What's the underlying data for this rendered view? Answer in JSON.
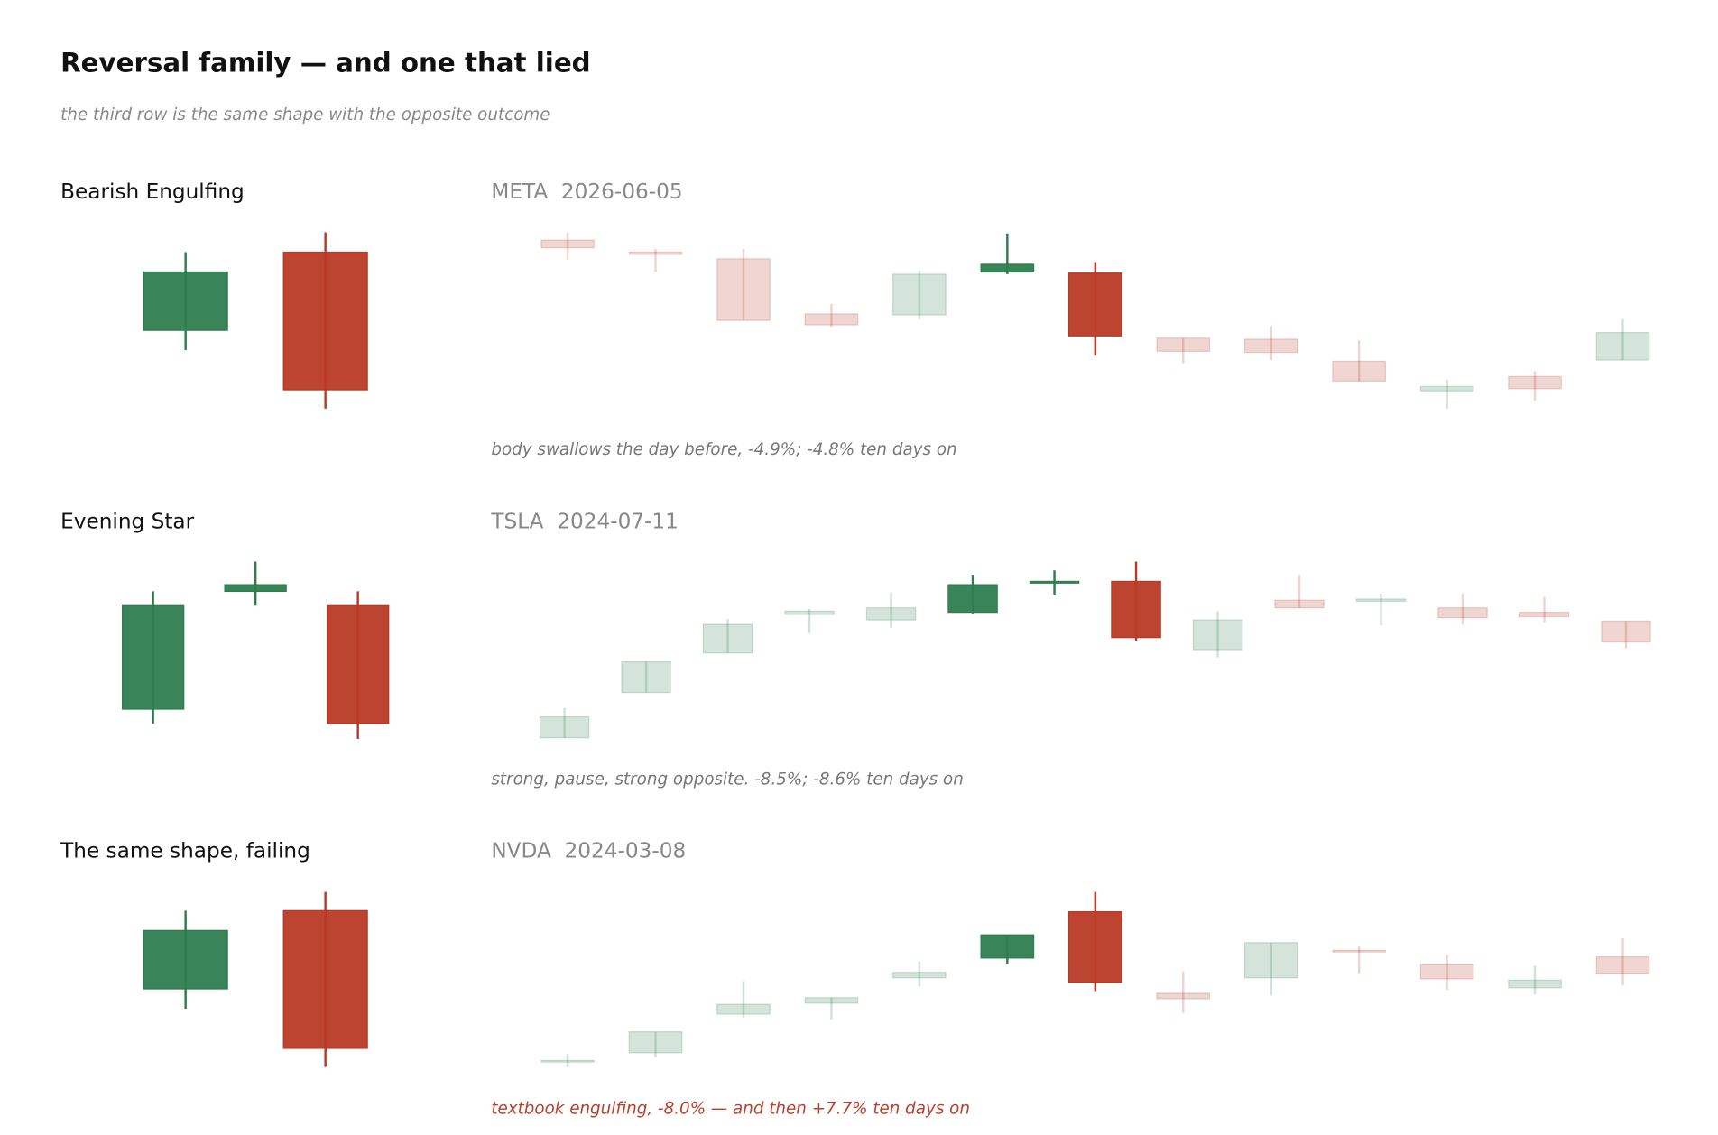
{
  "title": "Reversal family — and one that lied",
  "subtitle": "the third row is the same shape with the opposite outcome",
  "chart_data": [
    {
      "type": "candlestick",
      "title": "Bearish Engulfing",
      "title_color": "#111111",
      "open": [
        80,
        151
      ],
      "high": [
        151,
        169
      ],
      "low": [
        62,
        9
      ],
      "close": [
        133,
        26
      ],
      "ylim": [
        0,
        180
      ],
      "up_color": "#2e7d4f",
      "down_color": "#b83a25"
    },
    {
      "type": "candlestick",
      "title": "META  2026-06-05",
      "title_color": "#888888",
      "caption": "body swallows the day before, -4.9%; -4.8% ten days on",
      "caption_color": "#777777",
      "open": [
        162,
        151,
        145,
        95,
        94,
        133,
        132,
        73,
        72,
        52,
        25,
        38,
        53
      ],
      "high": [
        169,
        154,
        154,
        104,
        134,
        168,
        142,
        73,
        84,
        71,
        35,
        43,
        90
      ],
      "low": [
        144,
        133,
        89,
        83,
        90,
        131,
        57,
        50,
        53,
        34,
        9,
        16,
        53
      ],
      "close": [
        155,
        149,
        89,
        85,
        131,
        140,
        75,
        61,
        60,
        34,
        29,
        27,
        78
      ],
      "highlight": [
        5,
        6
      ],
      "ylim": [
        0,
        180
      ],
      "up_color": "#2e7d4f",
      "down_color": "#b83a25"
    },
    {
      "type": "candlestick",
      "title": "Evening Star",
      "title_color": "#111111",
      "open": [
        36,
        143,
        130
      ],
      "high": [
        143,
        170,
        143
      ],
      "low": [
        23,
        130,
        9
      ],
      "close": [
        130,
        149,
        23
      ],
      "ylim": [
        0,
        180
      ],
      "up_color": "#2e7d4f",
      "down_color": "#b83a25"
    },
    {
      "type": "candlestick",
      "title": "TSLA  2024-07-11",
      "title_color": "#888888",
      "caption": "strong, pause, strong opposite. -8.5%; -8.6% ten days on",
      "caption_color": "#777777",
      "open": [
        10,
        51,
        87,
        122,
        117,
        124,
        151,
        152,
        90,
        135,
        134,
        128,
        124,
        116
      ],
      "high": [
        37,
        79,
        118,
        127,
        142,
        158,
        162,
        170,
        125,
        158,
        141,
        141,
        138,
        116
      ],
      "low": [
        10,
        51,
        87,
        105,
        110,
        123,
        140,
        98,
        83,
        128,
        112,
        113,
        115,
        91
      ],
      "close": [
        29,
        79,
        113,
        125,
        128,
        149,
        152,
        101,
        117,
        128,
        136,
        119,
        120,
        97
      ],
      "highlight": [
        5,
        6,
        7
      ],
      "ylim": [
        0,
        180
      ],
      "up_color": "#2e7d4f",
      "down_color": "#b83a25"
    },
    {
      "type": "candlestick",
      "title": "The same shape, failing",
      "title_color": "#111111",
      "open": [
        82,
        153
      ],
      "high": [
        153,
        170
      ],
      "low": [
        64,
        11
      ],
      "close": [
        135,
        28
      ],
      "ylim": [
        0,
        180
      ],
      "up_color": "#2e7d4f",
      "down_color": "#b83a25"
    },
    {
      "type": "candlestick",
      "title": "NVDA  2024-03-08",
      "title_color": "#888888",
      "caption": "textbook engulfing, -8.0% — and then +7.7% ten days on",
      "caption_color": "#b5412c",
      "open": [
        16,
        24,
        59,
        69,
        92,
        110,
        152,
        78,
        92,
        117,
        104,
        83,
        111
      ],
      "high": [
        23,
        43,
        89,
        74,
        107,
        131,
        170,
        98,
        124,
        121,
        113,
        103,
        128
      ],
      "low": [
        11,
        20,
        56,
        54,
        84,
        105,
        80,
        60,
        76,
        96,
        81,
        77,
        85
      ],
      "close": [
        17,
        43,
        68,
        74,
        97,
        131,
        88,
        73,
        124,
        116,
        91,
        90,
        96
      ],
      "highlight": [
        5,
        6
      ],
      "ylim": [
        0,
        180
      ],
      "up_color": "#2e7d4f",
      "down_color": "#b83a25"
    }
  ]
}
